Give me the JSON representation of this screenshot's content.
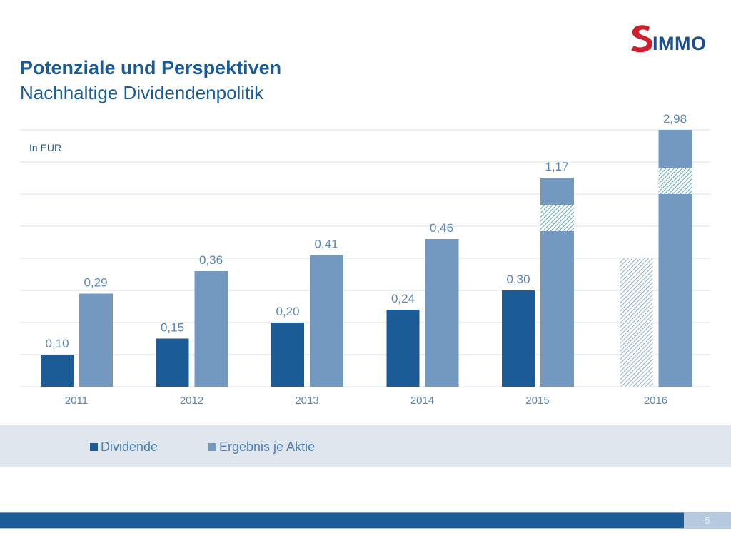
{
  "brand": {
    "logo_text": "IMMO",
    "logo_mark": "S",
    "logo_red": "#d0202e",
    "logo_blue": "#1b4f8f"
  },
  "header": {
    "title": "Potenziale und Perspektiven",
    "subtitle": "Nachhaltige Dividendenpolitik"
  },
  "colors": {
    "dividend": "#1b5b96",
    "eps": "#7499c0",
    "label": "#5b87b6",
    "grid": "#dde7ef",
    "hatch_teal": "#5aa8b4"
  },
  "chart_data": {
    "type": "bar",
    "title": "Nachhaltige Dividendenpolitik",
    "unit_label": "In EUR",
    "xlabel": "",
    "ylabel": "",
    "categories": [
      "2011",
      "2012",
      "2013",
      "2014",
      "2015",
      "2016"
    ],
    "series": [
      {
        "name": "Dividende",
        "values": [
          0.1,
          0.15,
          0.2,
          0.24,
          0.3,
          null
        ],
        "labels": [
          "0,10",
          "0,15",
          "0,20",
          "0,24",
          "0,30",
          ""
        ],
        "projected": [
          false,
          false,
          false,
          false,
          false,
          true
        ]
      },
      {
        "name": "Ergebnis je Aktie",
        "values": [
          0.29,
          0.36,
          0.41,
          0.46,
          1.17,
          2.98
        ],
        "labels": [
          "0,29",
          "0,36",
          "0,41",
          "0,46",
          "1,17",
          "2,98"
        ],
        "scale_break": [
          false,
          false,
          false,
          false,
          true,
          true
        ]
      }
    ],
    "grid": true,
    "axis_values_shown": false,
    "legend": "bottom-center"
  },
  "legend": {
    "items": [
      {
        "label": "Dividende"
      },
      {
        "label": "Ergebnis je Aktie"
      }
    ]
  },
  "footer": {
    "page_number": "5"
  }
}
